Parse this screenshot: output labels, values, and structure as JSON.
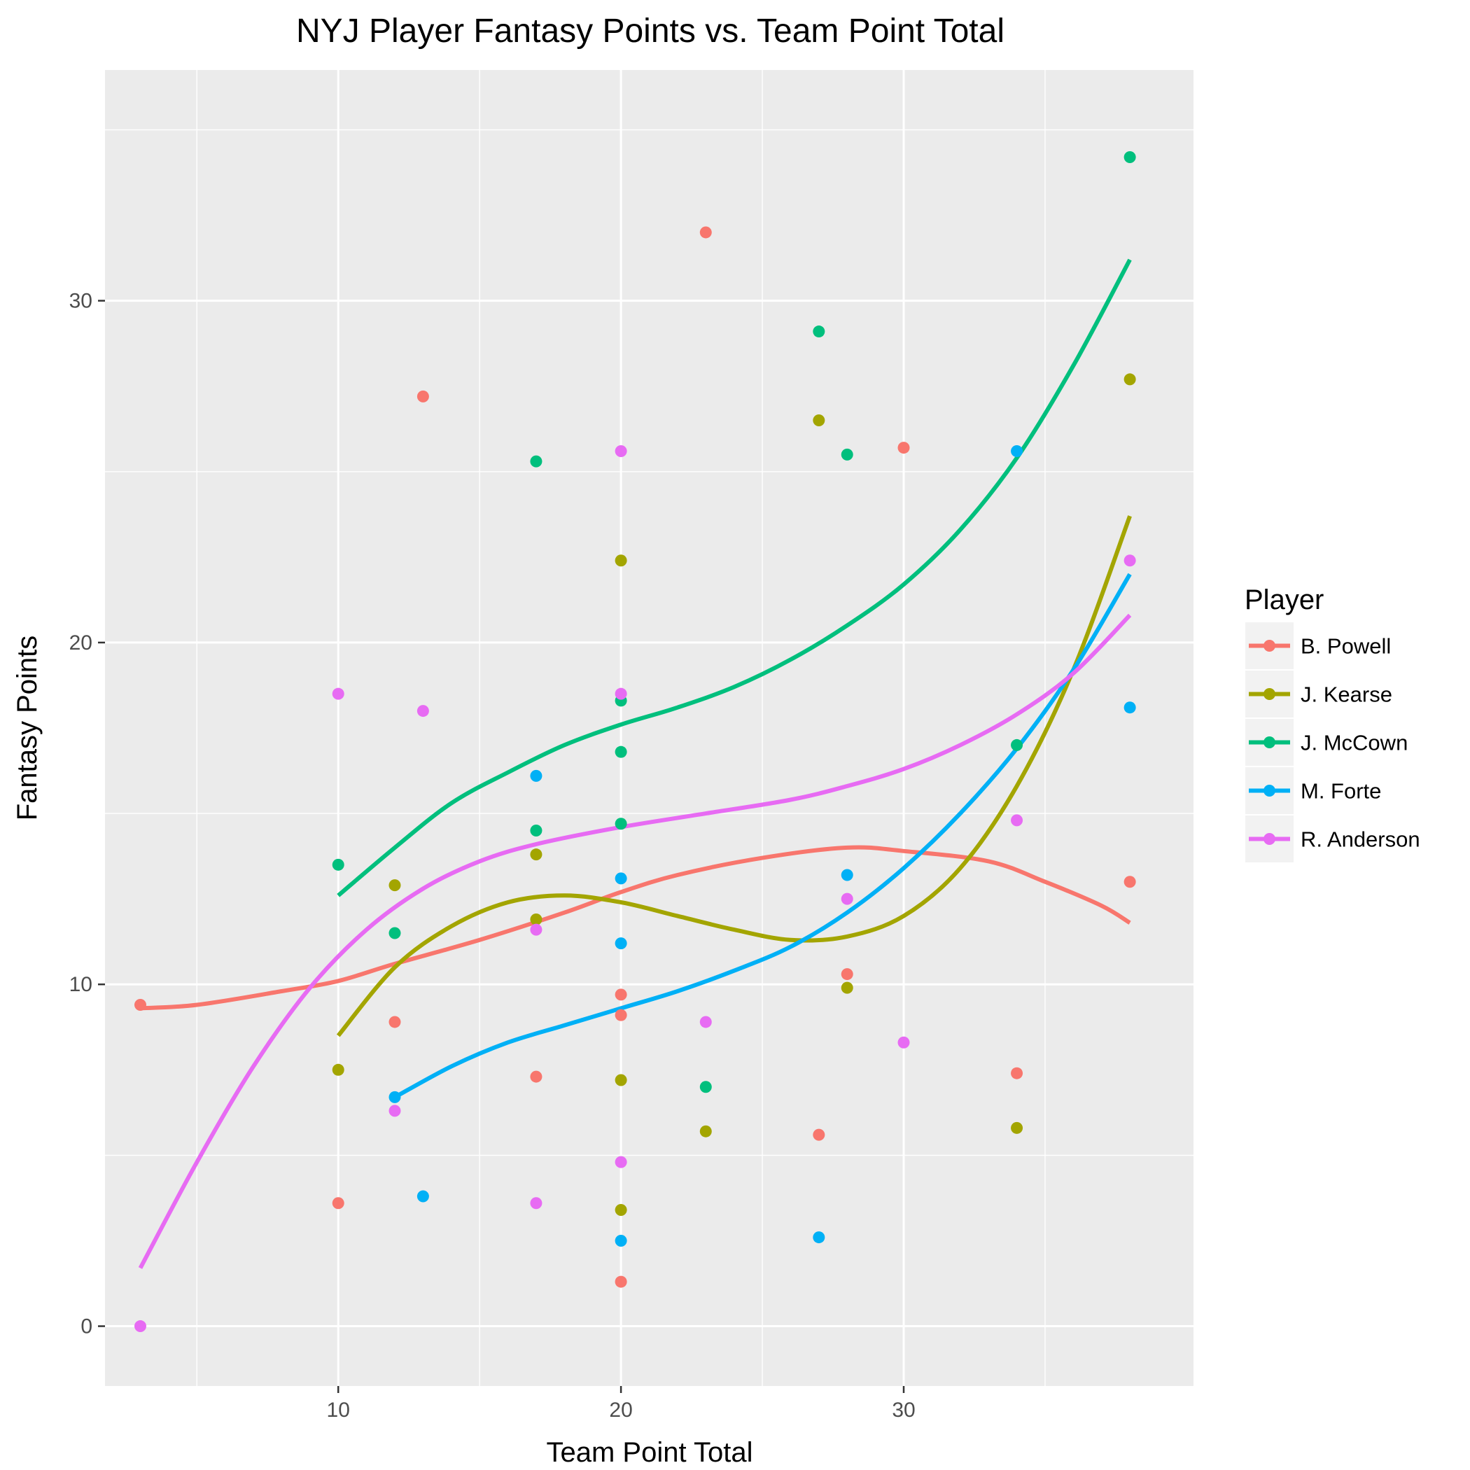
{
  "chart_data": {
    "type": "scatter",
    "title": "NYJ Player Fantasy Points vs. Team Point Total",
    "xlabel": "Team Point Total",
    "ylabel": "Fantasy Points",
    "xlim": [
      1.75,
      40.25
    ],
    "ylim": [
      -1.75,
      36.75
    ],
    "x_ticks": [
      10,
      20,
      30
    ],
    "y_ticks": [
      0,
      10,
      20,
      30
    ],
    "x_tick_labels": [
      "10",
      "20",
      "30"
    ],
    "y_tick_labels": [
      "0",
      "10",
      "20",
      "30"
    ],
    "grid": true,
    "legend": {
      "title": "Player",
      "position": "right"
    },
    "series": [
      {
        "name": "B. Powell",
        "color": "#F8766D",
        "points": [
          [
            3,
            9.4
          ],
          [
            10,
            3.6
          ],
          [
            12,
            8.9
          ],
          [
            13,
            27.2
          ],
          [
            17,
            7.3
          ],
          [
            20,
            9.7
          ],
          [
            20,
            9.1
          ],
          [
            20,
            1.3
          ],
          [
            23,
            32.0
          ],
          [
            27,
            5.6
          ],
          [
            28,
            10.3
          ],
          [
            30,
            25.7
          ],
          [
            34,
            7.4
          ],
          [
            38,
            13.0
          ]
        ],
        "smooth": [
          [
            3,
            9.3
          ],
          [
            5,
            9.4
          ],
          [
            8,
            9.8
          ],
          [
            10,
            10.1
          ],
          [
            12,
            10.6
          ],
          [
            15,
            11.3
          ],
          [
            18,
            12.1
          ],
          [
            20,
            12.7
          ],
          [
            22,
            13.2
          ],
          [
            25,
            13.7
          ],
          [
            28,
            14.0
          ],
          [
            30,
            13.9
          ],
          [
            33,
            13.6
          ],
          [
            35,
            13.0
          ],
          [
            37,
            12.3
          ],
          [
            38,
            11.8
          ]
        ]
      },
      {
        "name": "J. Kearse",
        "color": "#A3A500",
        "points": [
          [
            10,
            7.5
          ],
          [
            12,
            12.9
          ],
          [
            17,
            13.8
          ],
          [
            17,
            11.9
          ],
          [
            20,
            22.4
          ],
          [
            20,
            7.2
          ],
          [
            20,
            3.4
          ],
          [
            23,
            5.7
          ],
          [
            27,
            26.5
          ],
          [
            28,
            9.9
          ],
          [
            34,
            5.8
          ],
          [
            38,
            27.7
          ]
        ],
        "smooth": [
          [
            10,
            8.5
          ],
          [
            12,
            10.5
          ],
          [
            14,
            11.7
          ],
          [
            16,
            12.4
          ],
          [
            18,
            12.6
          ],
          [
            20,
            12.4
          ],
          [
            22,
            12.0
          ],
          [
            24,
            11.6
          ],
          [
            26,
            11.3
          ],
          [
            28,
            11.4
          ],
          [
            30,
            12.0
          ],
          [
            32,
            13.4
          ],
          [
            34,
            15.8
          ],
          [
            36,
            19.2
          ],
          [
            38,
            23.7
          ]
        ]
      },
      {
        "name": "J. McCown",
        "color": "#00BF7D",
        "points": [
          [
            10,
            13.5
          ],
          [
            12,
            11.5
          ],
          [
            17,
            25.3
          ],
          [
            17,
            14.5
          ],
          [
            20,
            18.3
          ],
          [
            20,
            16.8
          ],
          [
            20,
            14.7
          ],
          [
            23,
            7.0
          ],
          [
            27,
            29.1
          ],
          [
            28,
            25.5
          ],
          [
            34,
            17.0
          ],
          [
            38,
            34.2
          ]
        ],
        "smooth": [
          [
            10,
            12.6
          ],
          [
            12,
            14.0
          ],
          [
            14,
            15.3
          ],
          [
            16,
            16.2
          ],
          [
            18,
            17.0
          ],
          [
            20,
            17.6
          ],
          [
            22,
            18.1
          ],
          [
            24,
            18.7
          ],
          [
            26,
            19.5
          ],
          [
            28,
            20.5
          ],
          [
            30,
            21.7
          ],
          [
            32,
            23.3
          ],
          [
            34,
            25.4
          ],
          [
            36,
            28.1
          ],
          [
            38,
            31.2
          ]
        ]
      },
      {
        "name": "M. Forte",
        "color": "#00B0F6",
        "points": [
          [
            12,
            6.7
          ],
          [
            13,
            3.8
          ],
          [
            17,
            16.1
          ],
          [
            20,
            13.1
          ],
          [
            20,
            11.2
          ],
          [
            20,
            2.5
          ],
          [
            27,
            2.6
          ],
          [
            28,
            13.2
          ],
          [
            34,
            25.6
          ],
          [
            38,
            18.1
          ]
        ],
        "smooth": [
          [
            12,
            6.7
          ],
          [
            14,
            7.6
          ],
          [
            16,
            8.3
          ],
          [
            18,
            8.8
          ],
          [
            20,
            9.3
          ],
          [
            22,
            9.8
          ],
          [
            24,
            10.4
          ],
          [
            26,
            11.1
          ],
          [
            28,
            12.1
          ],
          [
            30,
            13.4
          ],
          [
            32,
            15.0
          ],
          [
            34,
            16.9
          ],
          [
            36,
            19.2
          ],
          [
            38,
            22.0
          ]
        ]
      },
      {
        "name": "R. Anderson",
        "color": "#E76BF3",
        "points": [
          [
            3,
            0.0
          ],
          [
            10,
            18.5
          ],
          [
            12,
            6.3
          ],
          [
            13,
            18.0
          ],
          [
            17,
            3.6
          ],
          [
            17,
            11.6
          ],
          [
            20,
            25.6
          ],
          [
            20,
            18.5
          ],
          [
            20,
            4.8
          ],
          [
            23,
            8.9
          ],
          [
            28,
            12.5
          ],
          [
            30,
            8.3
          ],
          [
            34,
            14.8
          ],
          [
            38,
            22.4
          ]
        ],
        "smooth": [
          [
            3,
            1.7
          ],
          [
            5,
            4.8
          ],
          [
            7,
            7.6
          ],
          [
            9,
            9.9
          ],
          [
            11,
            11.6
          ],
          [
            13,
            12.8
          ],
          [
            15,
            13.6
          ],
          [
            17,
            14.1
          ],
          [
            20,
            14.6
          ],
          [
            23,
            15.0
          ],
          [
            26,
            15.4
          ],
          [
            28,
            15.8
          ],
          [
            30,
            16.3
          ],
          [
            32,
            17.0
          ],
          [
            34,
            17.9
          ],
          [
            36,
            19.1
          ],
          [
            38,
            20.8
          ]
        ]
      }
    ]
  }
}
